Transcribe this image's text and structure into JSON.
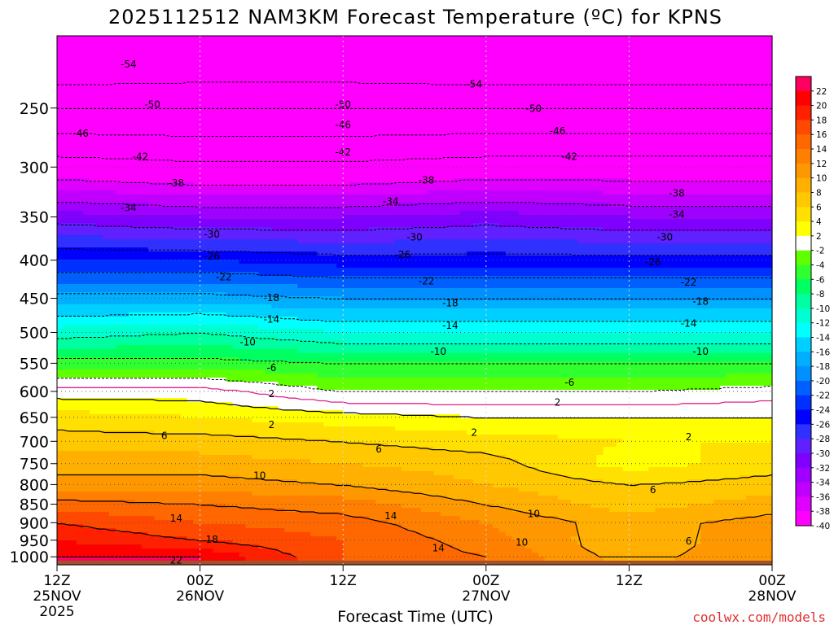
{
  "chart_data": {
    "type": "heatmap",
    "title": "2025112512 NAM3KM Forecast Temperature (ºC) for KPNS",
    "xlabel": "Forecast Time (UTC)",
    "ylabel": "",
    "credit": "coolwx.com/models",
    "x_ticks": [
      {
        "hour": 0,
        "lines": [
          "12Z",
          "25NOV",
          "2025"
        ]
      },
      {
        "hour": 12,
        "lines": [
          "00Z",
          "26NOV"
        ]
      },
      {
        "hour": 24,
        "lines": [
          "12Z"
        ]
      },
      {
        "hour": 36,
        "lines": [
          "00Z",
          "27NOV"
        ]
      },
      {
        "hour": 48,
        "lines": [
          "12Z"
        ]
      },
      {
        "hour": 60,
        "lines": [
          "00Z",
          "28NOV"
        ]
      }
    ],
    "xlim_hours": [
      0,
      60
    ],
    "y_axis": "pressure (hPa), log scale, inverted",
    "y_ticks": [
      250,
      300,
      350,
      400,
      450,
      500,
      550,
      600,
      650,
      700,
      750,
      800,
      850,
      900,
      950,
      1000
    ],
    "ylim": [
      200,
      1025
    ],
    "ground_color": "#a0522d",
    "legend_ticks": [
      22,
      20,
      18,
      16,
      14,
      12,
      10,
      8,
      6,
      4,
      2,
      -2,
      -4,
      -6,
      -8,
      -10,
      -12,
      -14,
      -16,
      -18,
      -20,
      -22,
      -24,
      -26,
      -28,
      -30,
      -32,
      -34,
      -36,
      -38,
      -40
    ],
    "color_scale": [
      {
        "min": -99,
        "max": -40,
        "color": "#ff00ff"
      },
      {
        "min": -40,
        "max": -38,
        "color": "#ff00ff"
      },
      {
        "min": -38,
        "max": -36,
        "color": "#e000ff"
      },
      {
        "min": -36,
        "max": -34,
        "color": "#c000ff"
      },
      {
        "min": -34,
        "max": -32,
        "color": "#a000ff"
      },
      {
        "min": -32,
        "max": -30,
        "color": "#8000ff"
      },
      {
        "min": -30,
        "max": -28,
        "color": "#6020ff"
      },
      {
        "min": -28,
        "max": -26,
        "color": "#3030ff"
      },
      {
        "min": -26,
        "max": -24,
        "color": "#0000ff"
      },
      {
        "min": -24,
        "max": -22,
        "color": "#0030ff"
      },
      {
        "min": -22,
        "max": -20,
        "color": "#0060ff"
      },
      {
        "min": -20,
        "max": -18,
        "color": "#0090ff"
      },
      {
        "min": -18,
        "max": -16,
        "color": "#00b0ff"
      },
      {
        "min": -16,
        "max": -14,
        "color": "#00d0ff"
      },
      {
        "min": -14,
        "max": -12,
        "color": "#00ffff"
      },
      {
        "min": -12,
        "max": -10,
        "color": "#00ffd0"
      },
      {
        "min": -10,
        "max": -8,
        "color": "#00ffa0"
      },
      {
        "min": -8,
        "max": -6,
        "color": "#00ff60"
      },
      {
        "min": -6,
        "max": -4,
        "color": "#30ff30"
      },
      {
        "min": -4,
        "max": -2,
        "color": "#60ff00"
      },
      {
        "min": -2,
        "max": 2,
        "color": "#ffffff"
      },
      {
        "min": 2,
        "max": 4,
        "color": "#ffff00"
      },
      {
        "min": 4,
        "max": 6,
        "color": "#ffe000"
      },
      {
        "min": 6,
        "max": 8,
        "color": "#ffc800"
      },
      {
        "min": 8,
        "max": 10,
        "color": "#ffb000"
      },
      {
        "min": 10,
        "max": 12,
        "color": "#ff9800"
      },
      {
        "min": 12,
        "max": 14,
        "color": "#ff8000"
      },
      {
        "min": 14,
        "max": 16,
        "color": "#ff6800"
      },
      {
        "min": 16,
        "max": 18,
        "color": "#ff4800"
      },
      {
        "min": 18,
        "max": 20,
        "color": "#ff2000"
      },
      {
        "min": 20,
        "max": 22,
        "color": "#ff0000"
      },
      {
        "min": 22,
        "max": 99,
        "color": "#ff0060"
      }
    ],
    "profiles": [
      {
        "hour": 0,
        "levels": [
          [
            250,
            -50
          ],
          [
            300,
            -40
          ],
          [
            350,
            -31
          ],
          [
            400,
            -24
          ],
          [
            450,
            -17
          ],
          [
            500,
            -11
          ],
          [
            550,
            -5
          ],
          [
            600,
            1
          ],
          [
            650,
            5
          ],
          [
            700,
            7
          ],
          [
            750,
            9
          ],
          [
            800,
            11
          ],
          [
            850,
            15
          ],
          [
            900,
            18
          ],
          [
            950,
            20
          ],
          [
            1000,
            22
          ]
        ]
      },
      {
        "hour": 12,
        "levels": [
          [
            250,
            -50
          ],
          [
            300,
            -41
          ],
          [
            350,
            -32
          ],
          [
            400,
            -24
          ],
          [
            450,
            -17
          ],
          [
            500,
            -10
          ],
          [
            550,
            -5
          ],
          [
            600,
            1
          ],
          [
            650,
            4
          ],
          [
            700,
            7
          ],
          [
            750,
            9
          ],
          [
            800,
            11
          ],
          [
            850,
            14
          ],
          [
            900,
            16
          ],
          [
            950,
            18
          ],
          [
            1000,
            22
          ]
        ]
      },
      {
        "hour": 24,
        "levels": [
          [
            250,
            -50
          ],
          [
            300,
            -41
          ],
          [
            350,
            -32
          ],
          [
            400,
            -25
          ],
          [
            450,
            -18
          ],
          [
            500,
            -12
          ],
          [
            550,
            -6
          ],
          [
            600,
            -2
          ],
          [
            650,
            3
          ],
          [
            700,
            6
          ],
          [
            750,
            8
          ],
          [
            800,
            10
          ],
          [
            850,
            13
          ],
          [
            900,
            15
          ],
          [
            950,
            16
          ],
          [
            1000,
            16
          ]
        ]
      },
      {
        "hour": 36,
        "levels": [
          [
            250,
            -50
          ],
          [
            300,
            -40
          ],
          [
            350,
            -31
          ],
          [
            400,
            -25
          ],
          [
            450,
            -18
          ],
          [
            500,
            -12
          ],
          [
            550,
            -6
          ],
          [
            600,
            -2
          ],
          [
            650,
            2
          ],
          [
            700,
            5
          ],
          [
            750,
            7
          ],
          [
            800,
            8
          ],
          [
            850,
            10
          ],
          [
            900,
            12
          ],
          [
            950,
            13
          ],
          [
            1000,
            14
          ]
        ]
      },
      {
        "hour": 48,
        "levels": [
          [
            250,
            -50
          ],
          [
            300,
            -40
          ],
          [
            350,
            -32
          ],
          [
            400,
            -25
          ],
          [
            450,
            -18
          ],
          [
            500,
            -12
          ],
          [
            550,
            -6
          ],
          [
            600,
            -2
          ],
          [
            650,
            2
          ],
          [
            700,
            4
          ],
          [
            750,
            3
          ],
          [
            800,
            6
          ],
          [
            850,
            7
          ],
          [
            900,
            9
          ],
          [
            950,
            8
          ],
          [
            1000,
            9
          ]
        ]
      },
      {
        "hour": 60,
        "levels": [
          [
            250,
            -50
          ],
          [
            300,
            -40
          ],
          [
            350,
            -32
          ],
          [
            400,
            -25
          ],
          [
            450,
            -18
          ],
          [
            500,
            -12
          ],
          [
            550,
            -6
          ],
          [
            600,
            -1
          ],
          [
            650,
            2
          ],
          [
            700,
            4
          ],
          [
            750,
            5
          ],
          [
            800,
            7
          ],
          [
            850,
            9
          ],
          [
            900,
            11
          ],
          [
            950,
            12
          ],
          [
            1000,
            12
          ]
        ]
      }
    ],
    "contour_labels": [
      {
        "hour": 6,
        "p": 218,
        "v": "-54"
      },
      {
        "hour": 35,
        "p": 232,
        "v": "-54"
      },
      {
        "hour": 8,
        "p": 247,
        "v": "-50"
      },
      {
        "hour": 24,
        "p": 247,
        "v": "-50"
      },
      {
        "hour": 40,
        "p": 250,
        "v": "-50"
      },
      {
        "hour": 2,
        "p": 270,
        "v": "-46"
      },
      {
        "hour": 24,
        "p": 263,
        "v": "-46"
      },
      {
        "hour": 42,
        "p": 268,
        "v": "-46"
      },
      {
        "hour": 7,
        "p": 290,
        "v": "-42"
      },
      {
        "hour": 24,
        "p": 286,
        "v": "-42"
      },
      {
        "hour": 43,
        "p": 290,
        "v": "-42"
      },
      {
        "hour": 10,
        "p": 315,
        "v": "-38"
      },
      {
        "hour": 31,
        "p": 312,
        "v": "-38"
      },
      {
        "hour": 52,
        "p": 325,
        "v": "-38"
      },
      {
        "hour": 6,
        "p": 340,
        "v": "-34"
      },
      {
        "hour": 28,
        "p": 333,
        "v": "-34"
      },
      {
        "hour": 52,
        "p": 347,
        "v": "-34"
      },
      {
        "hour": 13,
        "p": 369,
        "v": "-30"
      },
      {
        "hour": 30,
        "p": 372,
        "v": "-30"
      },
      {
        "hour": 51,
        "p": 372,
        "v": "-30"
      },
      {
        "hour": 13,
        "p": 395,
        "v": "-26"
      },
      {
        "hour": 29,
        "p": 393,
        "v": "-26"
      },
      {
        "hour": 50,
        "p": 402,
        "v": "-26"
      },
      {
        "hour": 14,
        "p": 421,
        "v": "-22"
      },
      {
        "hour": 31,
        "p": 426,
        "v": "-22"
      },
      {
        "hour": 53,
        "p": 428,
        "v": "-22"
      },
      {
        "hour": 18,
        "p": 449,
        "v": "-18"
      },
      {
        "hour": 33,
        "p": 456,
        "v": "-18"
      },
      {
        "hour": 54,
        "p": 454,
        "v": "-18"
      },
      {
        "hour": 18,
        "p": 480,
        "v": "-14"
      },
      {
        "hour": 33,
        "p": 489,
        "v": "-14"
      },
      {
        "hour": 53,
        "p": 486,
        "v": "-14"
      },
      {
        "hour": 16,
        "p": 515,
        "v": "-10"
      },
      {
        "hour": 32,
        "p": 530,
        "v": "-10"
      },
      {
        "hour": 54,
        "p": 530,
        "v": "-10"
      },
      {
        "hour": 18,
        "p": 557,
        "v": "-6"
      },
      {
        "hour": 43,
        "p": 583,
        "v": "-6"
      },
      {
        "hour": 18,
        "p": 604,
        "v": "2"
      },
      {
        "hour": 42,
        "p": 620,
        "v": "2"
      },
      {
        "hour": 18,
        "p": 664,
        "v": "2"
      },
      {
        "hour": 35,
        "p": 680,
        "v": "2"
      },
      {
        "hour": 53,
        "p": 690,
        "v": "2"
      },
      {
        "hour": 9,
        "p": 687,
        "v": "6"
      },
      {
        "hour": 27,
        "p": 716,
        "v": "6"
      },
      {
        "hour": 50,
        "p": 812,
        "v": "6"
      },
      {
        "hour": 53,
        "p": 952,
        "v": "6"
      },
      {
        "hour": 17,
        "p": 777,
        "v": "10"
      },
      {
        "hour": 40,
        "p": 875,
        "v": "10"
      },
      {
        "hour": 39,
        "p": 955,
        "v": "10"
      },
      {
        "hour": 10,
        "p": 887,
        "v": "14"
      },
      {
        "hour": 28,
        "p": 880,
        "v": "14"
      },
      {
        "hour": 32,
        "p": 972,
        "v": "14"
      },
      {
        "hour": 13,
        "p": 947,
        "v": "18"
      },
      {
        "hour": 10,
        "p": 1010,
        "v": "22"
      }
    ]
  }
}
